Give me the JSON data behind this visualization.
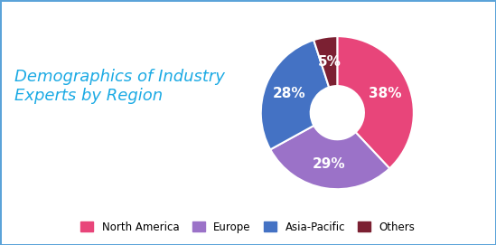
{
  "title": "Demographics of Industry\nExperts by Region",
  "title_color": "#1BAAE4",
  "title_fontsize": 13,
  "labels": [
    "North America",
    "Europe",
    "Asia-Pacific",
    "Others"
  ],
  "values": [
    38,
    29,
    28,
    5
  ],
  "colors": [
    "#E8457A",
    "#9B72C8",
    "#4472C4",
    "#7B2032"
  ],
  "pct_labels": [
    "38%",
    "29%",
    "28%",
    "5%"
  ],
  "pct_label_color": "white",
  "pct_fontsize": 11,
  "background_color": "#FFFFFF",
  "border_color": "#5BA3D9",
  "legend_labels": [
    "North America",
    "Europe",
    "Asia-Pacific",
    "Others"
  ],
  "wedge_linewidth": 1.5,
  "wedge_edgecolor": "#FFFFFF",
  "donut_width": 0.65,
  "startangle": 90
}
